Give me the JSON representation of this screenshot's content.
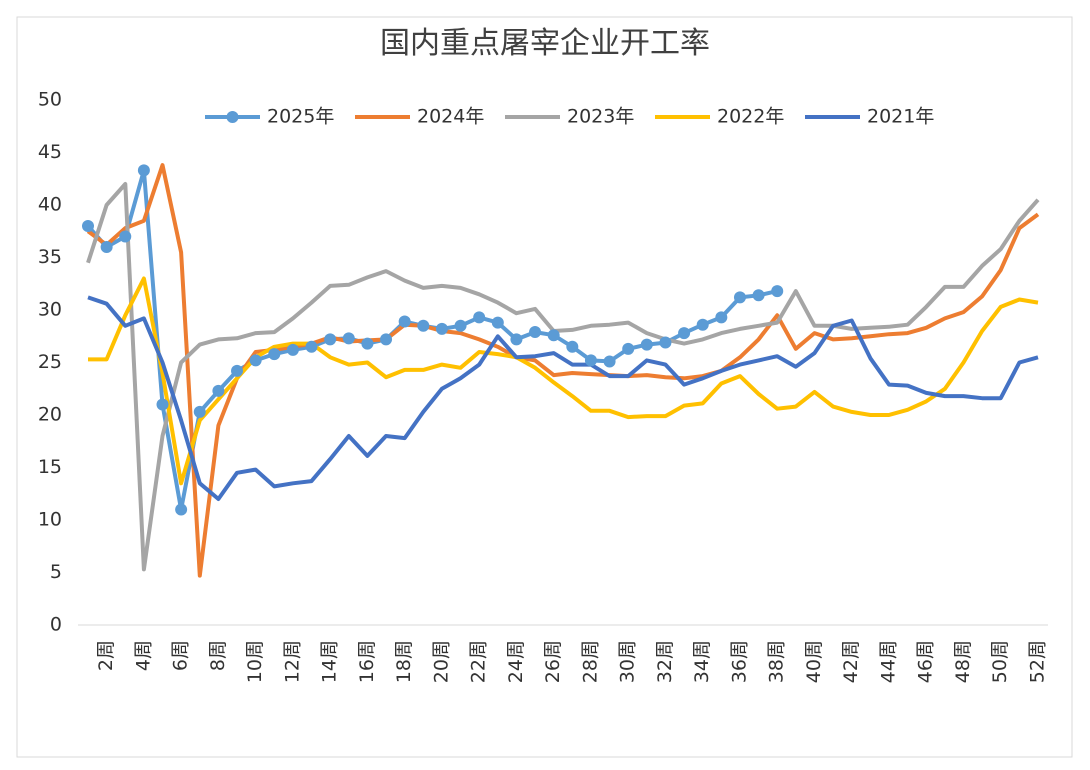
{
  "chart_data": {
    "type": "line",
    "title": "国内重点屠宰企业开工率",
    "categories": [
      null,
      "2周",
      null,
      "4周",
      null,
      "6周",
      null,
      "8周",
      null,
      "10周",
      null,
      "12周",
      null,
      "14周",
      null,
      "16周",
      null,
      "18周",
      null,
      "20周",
      null,
      "22周",
      null,
      "24周",
      null,
      "26周",
      null,
      "28周",
      null,
      "30周",
      null,
      "32周",
      null,
      "34周",
      null,
      "36周",
      null,
      "38周",
      null,
      "40周",
      null,
      "42周",
      null,
      "44周",
      null,
      "46周",
      null,
      "48周",
      null,
      "50周",
      null,
      "52周"
    ],
    "series": [
      {
        "name": "2025年",
        "color": "#5b9bd5",
        "marker": true,
        "values": [
          38,
          36,
          37,
          43.3,
          21,
          11,
          20.3,
          22.3,
          24.2,
          25.2,
          25.8,
          26.2,
          26.5,
          27.2,
          27.3,
          26.8,
          27.2,
          28.9,
          28.5,
          28.2,
          28.5,
          29.3,
          28.8,
          27.2,
          27.9,
          27.6,
          26.5,
          25.2,
          25.1,
          26.3,
          26.7,
          26.9,
          27.8,
          28.6,
          29.3,
          31.2,
          31.4,
          31.8,
          null,
          null,
          null,
          null,
          null,
          null,
          null,
          null,
          null,
          null,
          null,
          null,
          null,
          null
        ]
      },
      {
        "name": "2024年",
        "color": "#ed7d31",
        "marker": false,
        "values": [
          37.5,
          36.2,
          37.8,
          38.5,
          43.8,
          35.5,
          4.7,
          19,
          23.5,
          26,
          26.2,
          26.5,
          26.8,
          27.4,
          27,
          27.1,
          27.2,
          28.6,
          28.5,
          28,
          27.8,
          27.2,
          26.5,
          25.5,
          25.2,
          23.8,
          24,
          23.9,
          23.8,
          23.7,
          23.8,
          23.6,
          23.5,
          23.7,
          24.2,
          25.5,
          27.2,
          29.5,
          26.3,
          27.8,
          27.2,
          27.3,
          27.5,
          27.7,
          27.8,
          28.3,
          29.2,
          29.8,
          31.3,
          33.8,
          37.8,
          39.1
        ]
      },
      {
        "name": "2023年",
        "color": "#a5a5a5",
        "marker": false,
        "values": [
          34.5,
          40,
          42,
          5.3,
          18,
          25,
          26.7,
          27.2,
          27.3,
          27.8,
          27.9,
          29.2,
          30.7,
          32.3,
          32.4,
          33.1,
          33.7,
          32.8,
          32.1,
          32.3,
          32.1,
          31.5,
          30.7,
          29.7,
          30.1,
          28,
          28.1,
          28.5,
          28.6,
          28.8,
          27.8,
          27.2,
          26.8,
          27.2,
          27.8,
          28.2,
          28.5,
          28.8,
          31.8,
          28.5,
          28.5,
          28.2,
          28.3,
          28.4,
          28.6,
          30.3,
          32.2,
          32.2,
          34.2,
          35.8,
          38.5,
          40.5
        ]
      },
      {
        "name": "2022年",
        "color": "#ffc000",
        "marker": false,
        "values": [
          25.3,
          25.3,
          29.5,
          33,
          24,
          13.5,
          19.5,
          21.5,
          23.5,
          25.5,
          26.5,
          26.8,
          26.8,
          25.5,
          24.8,
          25,
          23.6,
          24.3,
          24.3,
          24.8,
          24.5,
          26,
          25.8,
          25.5,
          24.5,
          23.1,
          21.8,
          20.4,
          20.4,
          19.8,
          19.9,
          19.9,
          20.9,
          21.1,
          23,
          23.7,
          22,
          20.6,
          20.8,
          22.2,
          20.8,
          20.3,
          20,
          20,
          20.5,
          21.3,
          22.5,
          25,
          28,
          30.3,
          31,
          30.7
        ]
      },
      {
        "name": "2021年",
        "color": "#4472c4",
        "marker": false,
        "values": [
          31.2,
          30.6,
          28.5,
          29.2,
          25,
          19.5,
          13.5,
          12,
          14.5,
          14.8,
          13.2,
          13.5,
          13.7,
          15.8,
          18,
          16.1,
          18,
          17.8,
          20.3,
          22.5,
          23.5,
          24.8,
          27.5,
          25.5,
          25.6,
          25.9,
          24.8,
          24.8,
          23.7,
          23.7,
          25.2,
          24.8,
          22.9,
          23.5,
          24.2,
          24.8,
          25.2,
          25.6,
          24.6,
          25.9,
          28.5,
          29,
          25.4,
          22.9,
          22.8,
          22.1,
          21.8,
          21.8,
          21.6,
          21.6,
          25,
          25.5
        ]
      }
    ],
    "ylim": [
      0,
      50
    ],
    "yticks": [
      0,
      5,
      10,
      15,
      20,
      25,
      30,
      35,
      40,
      45,
      50
    ],
    "grid": false,
    "legend": "top"
  }
}
